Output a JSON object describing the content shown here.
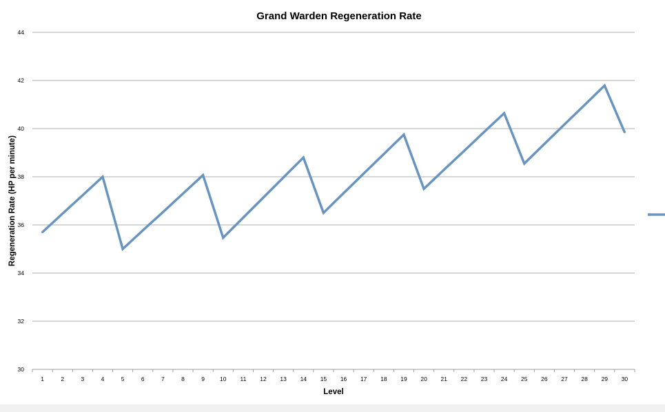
{
  "chart_data": {
    "type": "line",
    "title": "Grand Warden Regeneration Rate",
    "xlabel": "Level",
    "ylabel": "Regeneration Rate (HP per minute)",
    "ylim": [
      30,
      44
    ],
    "yticks": [
      "30",
      "32",
      "34",
      "36",
      "38",
      "40",
      "42",
      "44"
    ],
    "grid": true,
    "legend_position": "right",
    "categories": [
      "1",
      "2",
      "3",
      "4",
      "5",
      "6",
      "7",
      "8",
      "9",
      "10",
      "11",
      "12",
      "13",
      "14",
      "15",
      "16",
      "17",
      "18",
      "19",
      "20",
      "21",
      "22",
      "23",
      "24",
      "25",
      "26",
      "27",
      "28",
      "29",
      "30"
    ],
    "series": [
      {
        "color": "#6994bf",
        "values": [
          35.7,
          36.47,
          37.23,
          38.0,
          35.0,
          35.77,
          36.53,
          37.3,
          38.07,
          35.47,
          36.3,
          37.13,
          37.97,
          38.8,
          36.5,
          37.32,
          38.13,
          38.94,
          39.75,
          37.5,
          38.29,
          39.07,
          39.86,
          40.64,
          38.55,
          39.36,
          40.17,
          40.98,
          41.79,
          39.85
        ]
      }
    ]
  }
}
